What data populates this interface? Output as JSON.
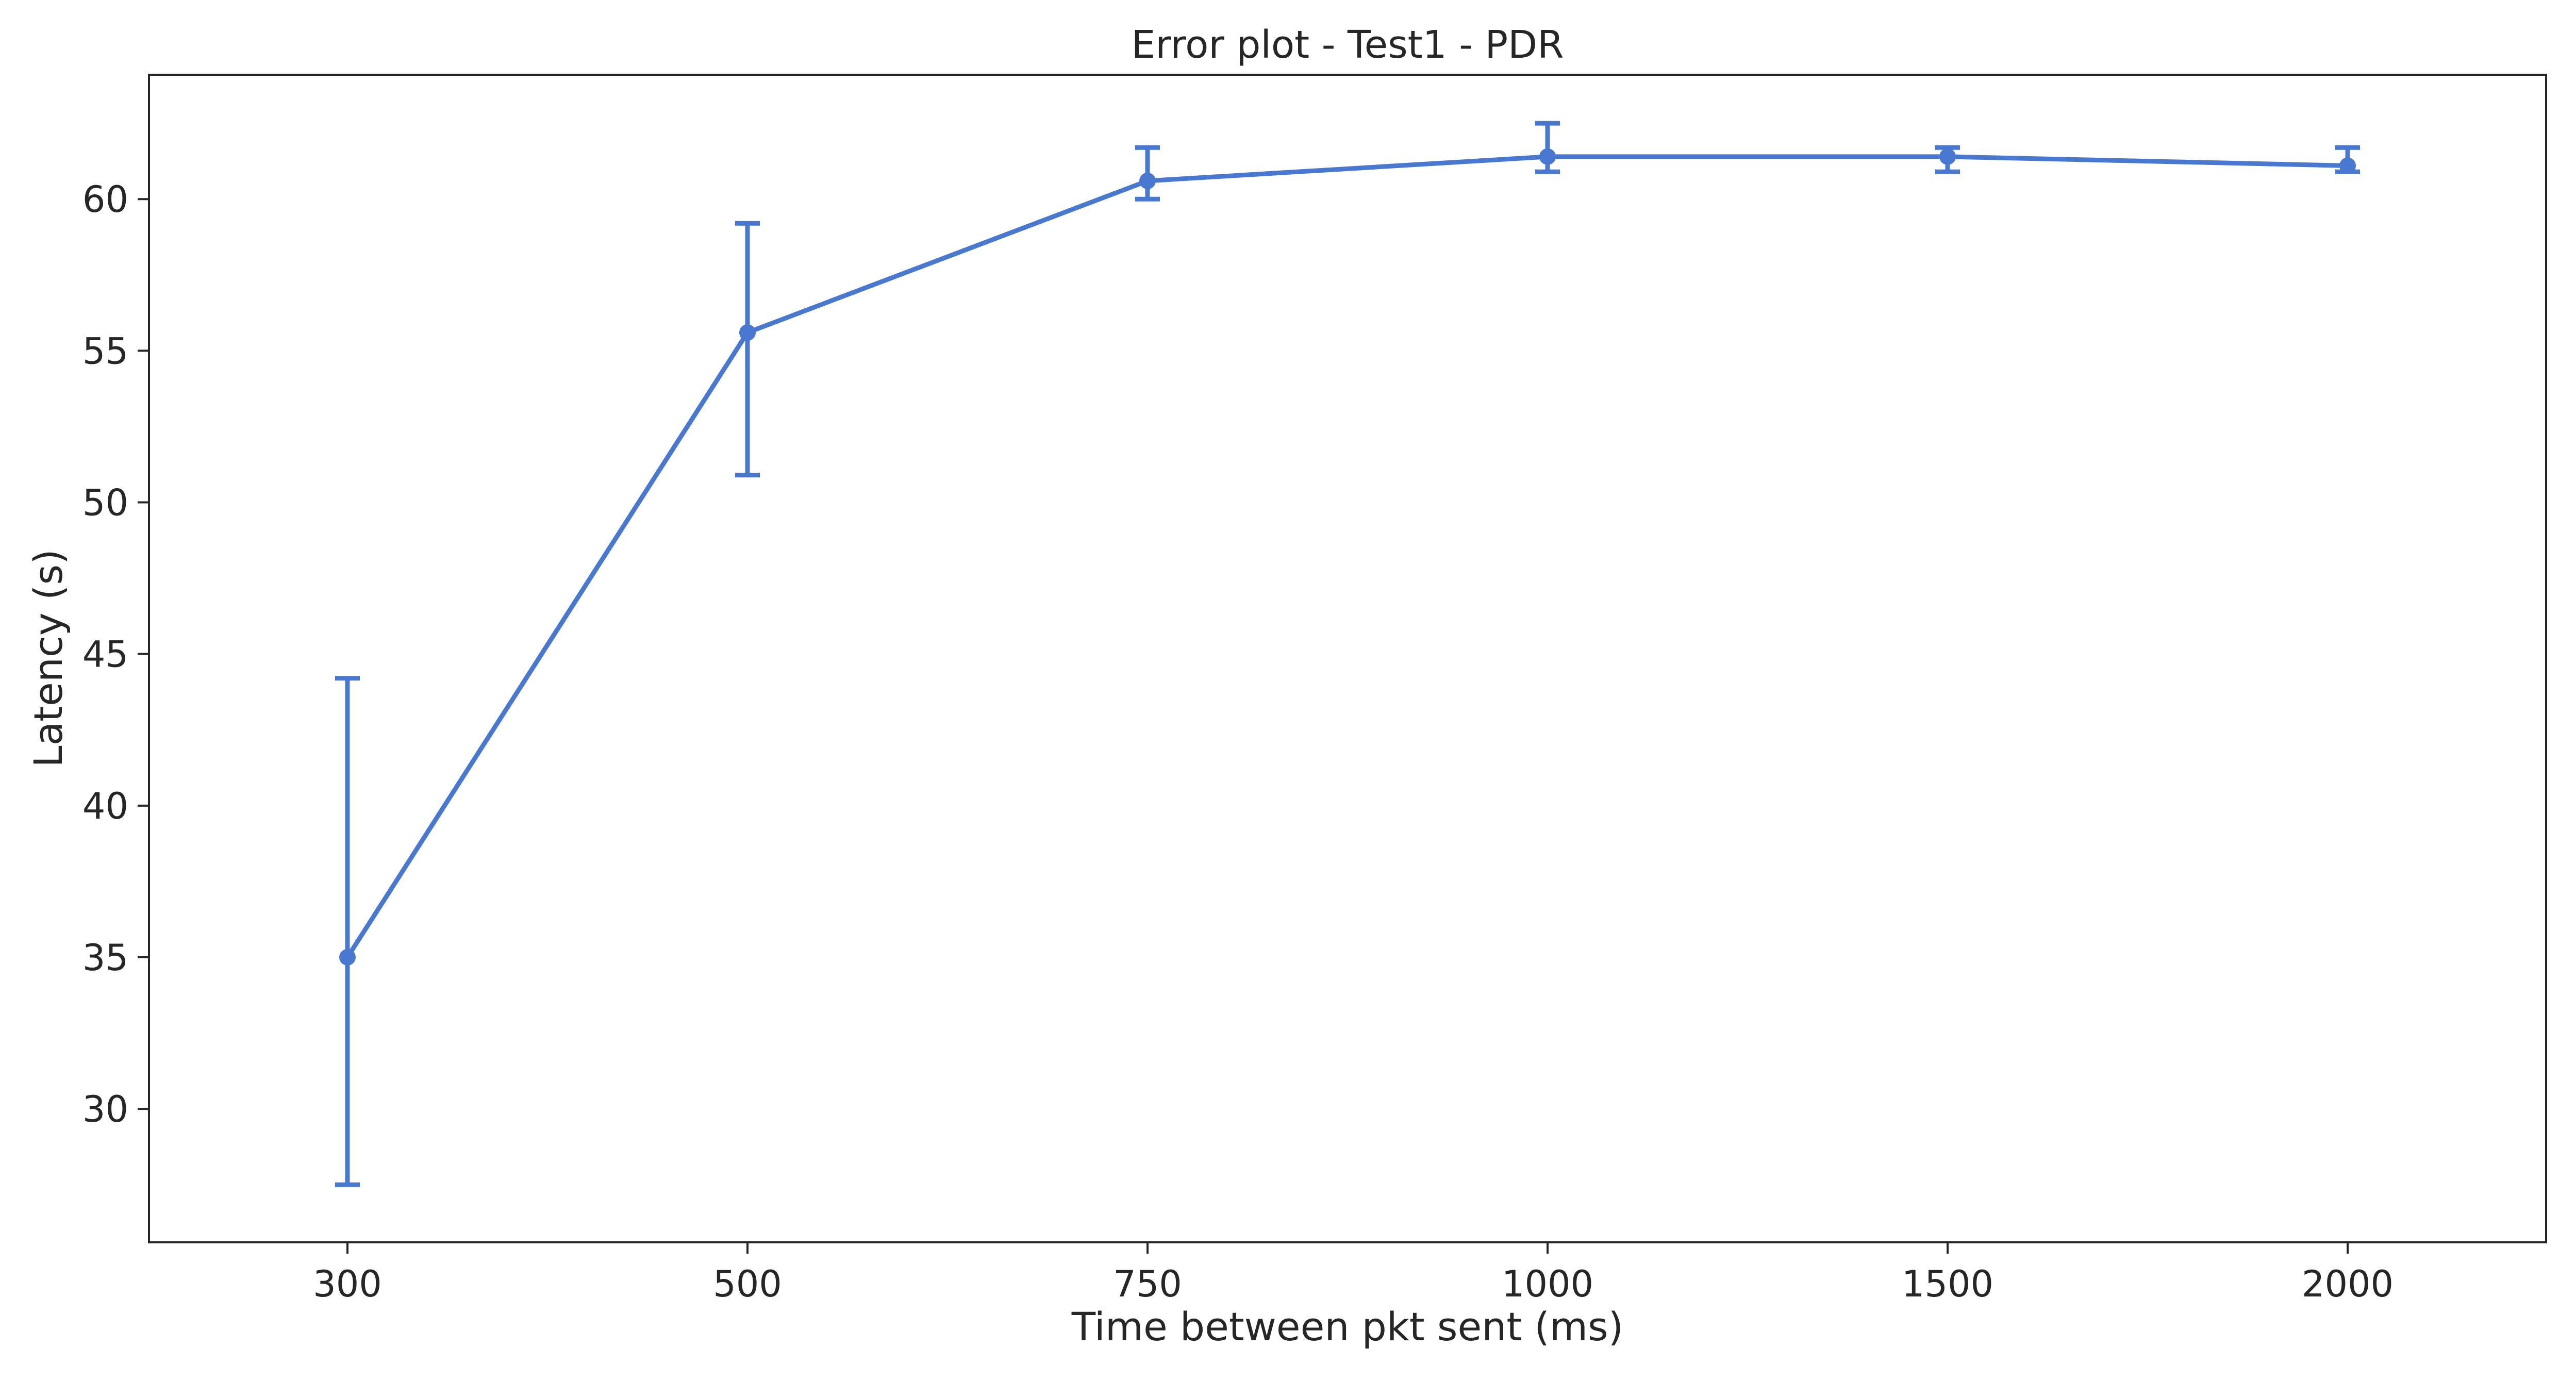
{
  "chart_data": {
    "type": "line",
    "title": "Error plot - Test1 - PDR",
    "xlabel": "Time between pkt sent (ms)",
    "ylabel": "Latency (s)",
    "categories": [
      "300",
      "500",
      "750",
      "1000",
      "1500",
      "2000"
    ],
    "series": [
      {
        "values": [
          35.0,
          55.6,
          60.6,
          61.4,
          61.4,
          61.1
        ],
        "err_low": [
          27.5,
          50.9,
          60.0,
          60.9,
          60.9,
          60.9
        ],
        "err_high": [
          44.2,
          59.2,
          61.7,
          62.5,
          61.7,
          61.7
        ],
        "color": "#4878cf"
      }
    ],
    "yticks": [
      30,
      35,
      40,
      45,
      50,
      55,
      60
    ],
    "ylim": [
      25.6,
      64.1
    ],
    "grid": false,
    "legend": "none"
  }
}
